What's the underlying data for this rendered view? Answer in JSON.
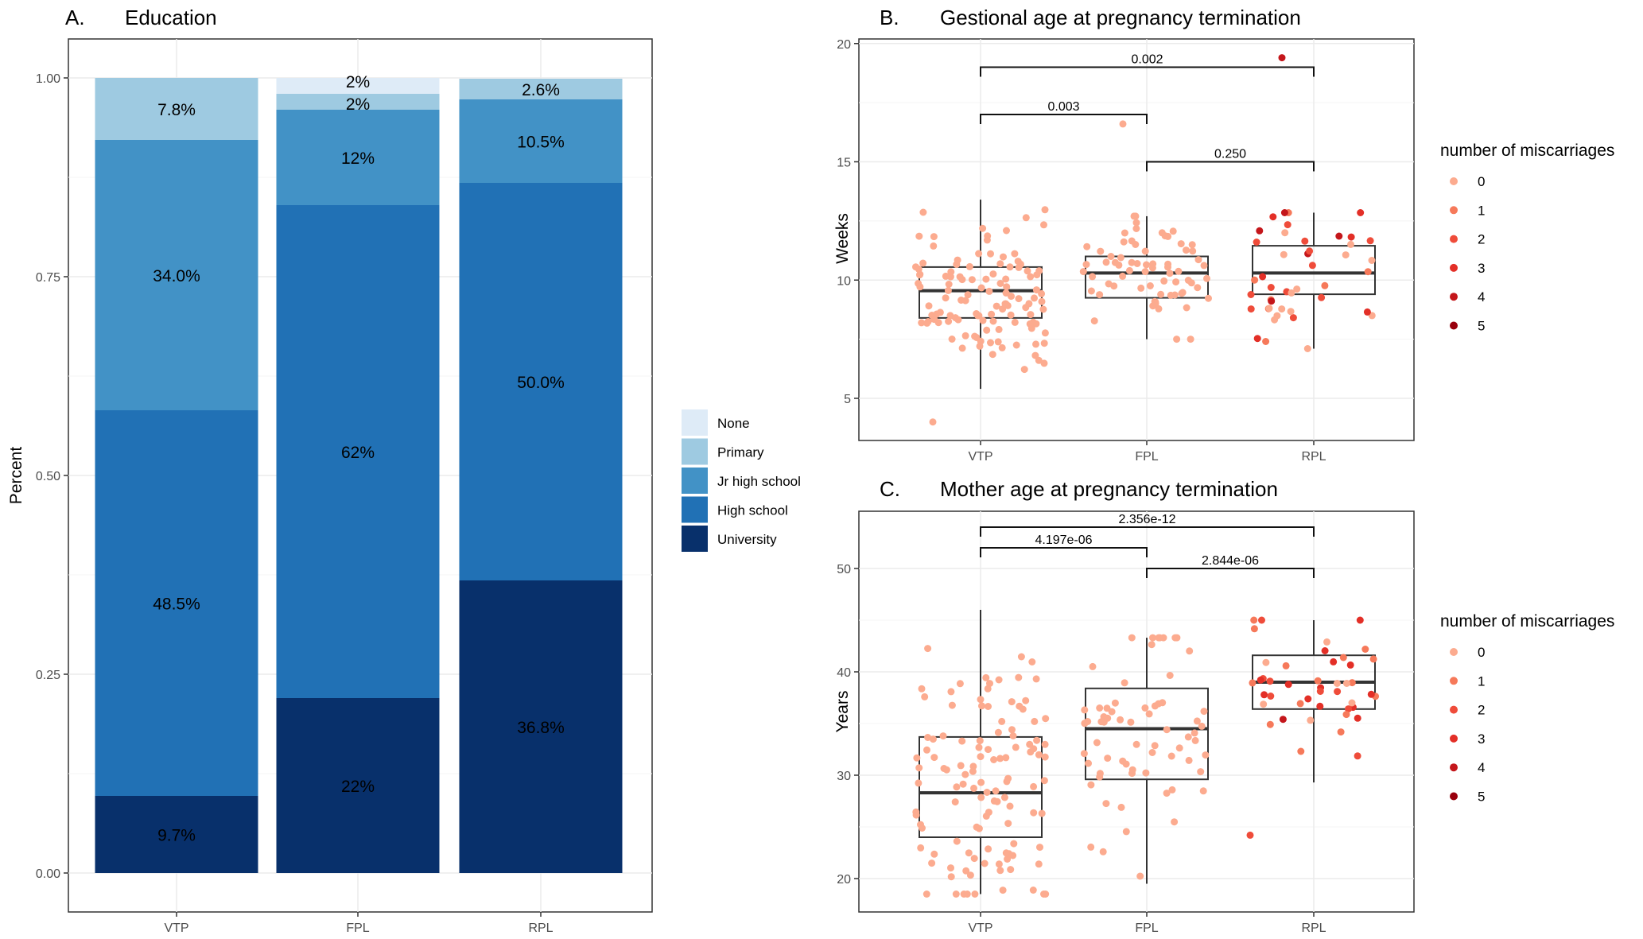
{
  "chart_data": [
    {
      "id": "A",
      "type": "bar",
      "stacked": true,
      "panel_label": "A.",
      "title": "Education",
      "xlabel": "",
      "ylabel": "Percent",
      "ylim": [
        0,
        1
      ],
      "yticks": [
        "0.00",
        "0.25",
        "0.50",
        "0.75",
        "1.00"
      ],
      "categories": [
        "VTP",
        "FPL",
        "RPL"
      ],
      "legend": {
        "position": "right",
        "title": ""
      },
      "grid": true,
      "series": [
        {
          "name": "University",
          "color": "#08306b",
          "values": [
            0.097,
            0.22,
            0.368
          ],
          "labels": [
            "9.7%",
            "22%",
            "36.8%"
          ]
        },
        {
          "name": "High school",
          "color": "#2171b5",
          "values": [
            0.485,
            0.62,
            0.5
          ],
          "labels": [
            "48.5%",
            "62%",
            "50.0%"
          ]
        },
        {
          "name": "Jr high school",
          "color": "#4292c6",
          "values": [
            0.34,
            0.12,
            0.105
          ],
          "labels": [
            "34.0%",
            "12%",
            "10.5%"
          ]
        },
        {
          "name": "Primary",
          "color": "#9ecae1",
          "values": [
            0.078,
            0.02,
            0.026
          ],
          "labels": [
            "7.8%",
            "2%",
            "2.6%"
          ]
        },
        {
          "name": "None",
          "color": "#deebf7",
          "values": [
            0,
            0.02,
            0
          ],
          "labels": [
            "",
            "2%",
            ""
          ]
        }
      ]
    },
    {
      "id": "B",
      "type": "scatter",
      "subtype": "boxplot-jitter",
      "panel_label": "B.",
      "title": "Gestional age at pregnancy termination",
      "xlabel": "",
      "ylabel": "Weeks",
      "ylim": [
        3,
        20.5
      ],
      "yticks": [
        5,
        10,
        15,
        20
      ],
      "categories": [
        "VTP",
        "FPL",
        "RPL"
      ],
      "legend": {
        "position": "right",
        "title": "number of miscarriages",
        "items": [
          {
            "label": "0",
            "color": "#fcab8f"
          },
          {
            "label": "1",
            "color": "#f6795a"
          },
          {
            "label": "2",
            "color": "#ef4c3a"
          },
          {
            "label": "3",
            "color": "#e32f27"
          },
          {
            "label": "4",
            "color": "#c4161b"
          },
          {
            "label": "5",
            "color": "#99000d"
          }
        ]
      },
      "boxes": [
        {
          "category": "VTP",
          "min": 5.4,
          "q1": 8.4,
          "median": 9.55,
          "q3": 10.55,
          "max": 13.4
        },
        {
          "category": "FPL",
          "min": 7.5,
          "q1": 9.25,
          "median": 10.3,
          "q3": 11.0,
          "max": 12.7
        },
        {
          "category": "RPL",
          "min": 7.1,
          "q1": 9.4,
          "median": 10.3,
          "q3": 11.45,
          "max": 12.85
        }
      ],
      "comparisons": [
        {
          "from": "VTP",
          "to": "RPL",
          "label": "0.002",
          "y": 19.0
        },
        {
          "from": "VTP",
          "to": "FPL",
          "label": "0.003",
          "y": 17.0
        },
        {
          "from": "FPL",
          "to": "RPL",
          "label": "0.250",
          "y": 15.0
        }
      ],
      "outliers": [
        {
          "category": "VTP",
          "y": 4.0,
          "group": 0
        },
        {
          "category": "FPL",
          "y": 16.6,
          "group": 0
        },
        {
          "category": "RPL",
          "y": 19.4,
          "group": 4
        }
      ]
    },
    {
      "id": "C",
      "type": "scatter",
      "subtype": "boxplot-jitter",
      "panel_label": "C.",
      "title": "Mother age at pregnancy termination",
      "xlabel": "",
      "ylabel": "Years",
      "ylim": [
        17,
        56
      ],
      "yticks": [
        20,
        30,
        40,
        50
      ],
      "categories": [
        "VTP",
        "FPL",
        "RPL"
      ],
      "legend": {
        "position": "right",
        "title": "number of miscarriages",
        "items": [
          {
            "label": "0",
            "color": "#fcab8f"
          },
          {
            "label": "1",
            "color": "#f6795a"
          },
          {
            "label": "2",
            "color": "#ef4c3a"
          },
          {
            "label": "3",
            "color": "#e32f27"
          },
          {
            "label": "4",
            "color": "#c4161b"
          },
          {
            "label": "5",
            "color": "#99000d"
          }
        ]
      },
      "boxes": [
        {
          "category": "VTP",
          "min": 18.5,
          "q1": 24.0,
          "median": 28.3,
          "q3": 33.7,
          "max": 46.0
        },
        {
          "category": "FPL",
          "min": 19.5,
          "q1": 29.6,
          "median": 34.5,
          "q3": 38.4,
          "max": 43.3
        },
        {
          "category": "RPL",
          "min": 29.3,
          "q1": 36.4,
          "median": 39.0,
          "q3": 41.6,
          "max": 45.0
        }
      ],
      "comparisons": [
        {
          "from": "VTP",
          "to": "RPL",
          "label": "2.356e-12",
          "y": 54.0
        },
        {
          "from": "VTP",
          "to": "FPL",
          "label": "4.197e-06",
          "y": 52.0
        },
        {
          "from": "FPL",
          "to": "RPL",
          "label": "2.844e-06",
          "y": 50.0
        }
      ],
      "outliers": [
        {
          "category": "RPL",
          "y": 24.2,
          "group": 2
        }
      ]
    }
  ]
}
